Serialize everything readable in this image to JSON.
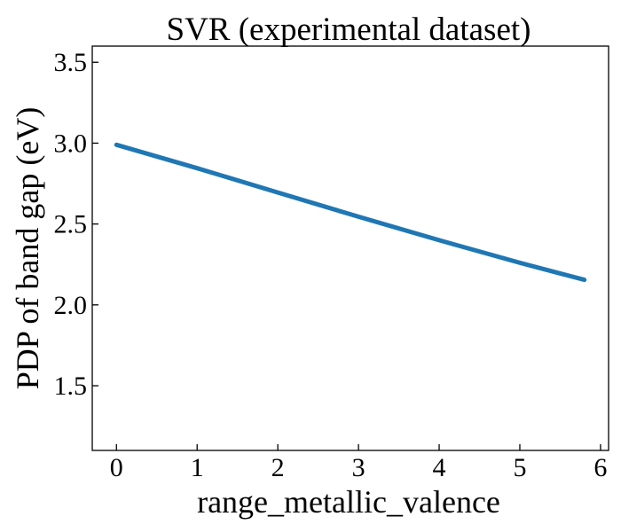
{
  "chart_data": {
    "type": "line",
    "title": "SVR (experimental dataset)",
    "xlabel": "range_metallic_valence",
    "ylabel": "PDP of band gap (eV)",
    "xlim": [
      -0.3,
      6.1
    ],
    "ylim": [
      1.1,
      3.6
    ],
    "x_ticks": [
      0,
      1,
      2,
      3,
      4,
      5,
      6
    ],
    "x_tick_labels": [
      "0",
      "1",
      "2",
      "3",
      "4",
      "5",
      "6"
    ],
    "y_ticks": [
      1.5,
      2.0,
      2.5,
      3.0,
      3.5
    ],
    "y_tick_labels": [
      "1.5",
      "2.0",
      "2.5",
      "3.0",
      "3.5"
    ],
    "grid": false,
    "series": [
      {
        "name": "PDP",
        "color": "#1f77b4",
        "x": [
          0,
          1,
          2,
          3,
          4,
          5,
          5.8
        ],
        "y": [
          2.99,
          2.845,
          2.695,
          2.545,
          2.4,
          2.26,
          2.155
        ]
      }
    ]
  }
}
